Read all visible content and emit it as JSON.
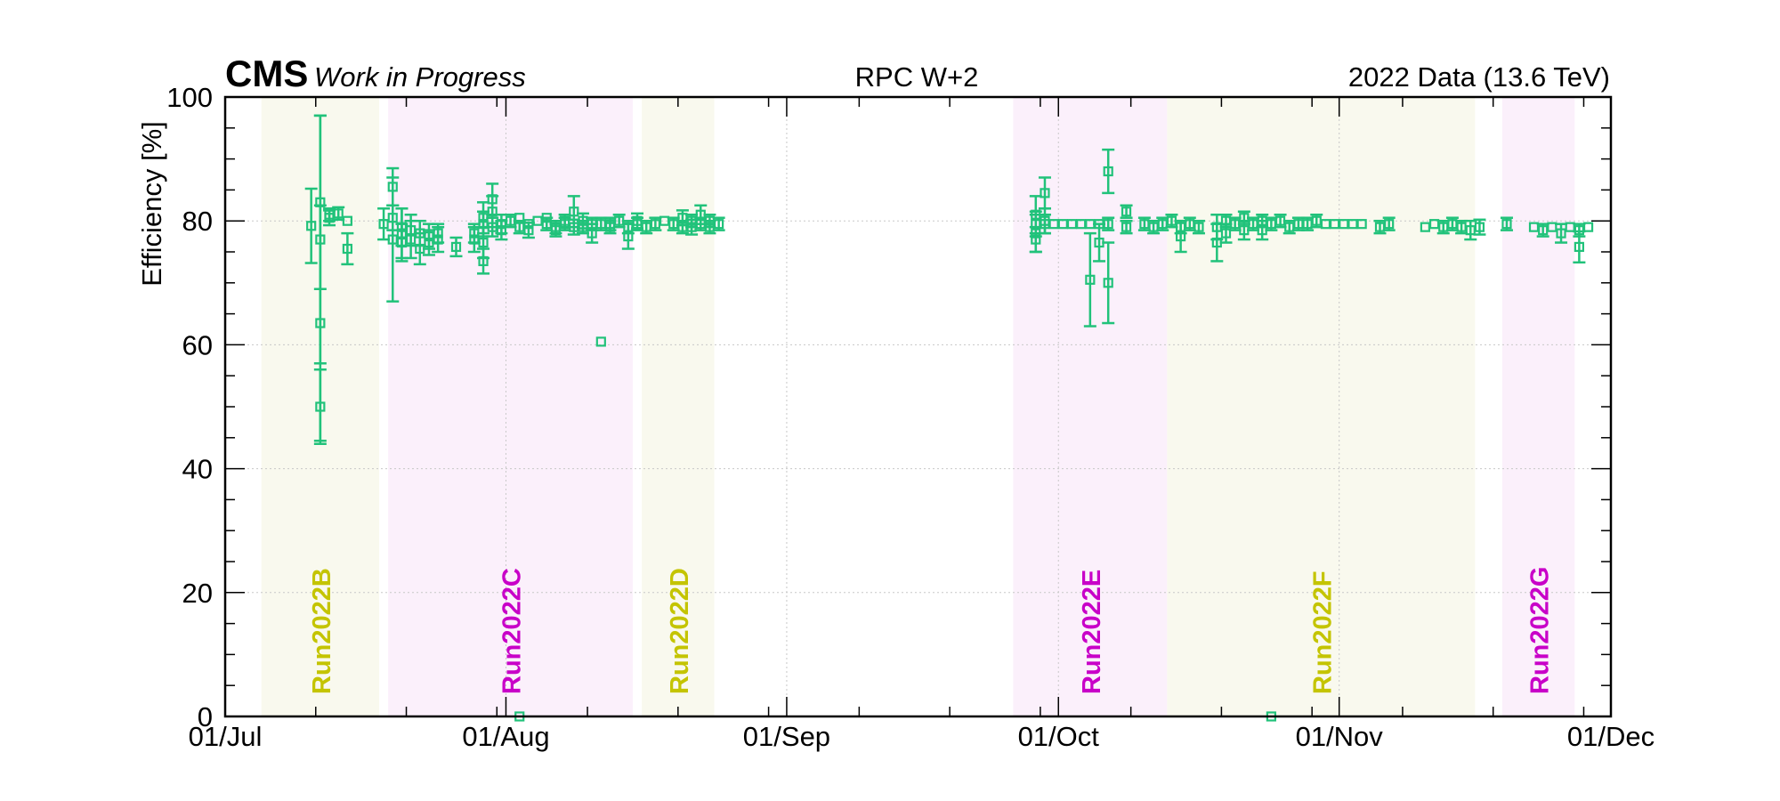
{
  "header": {
    "experiment": "CMS",
    "status": "Work in Progress",
    "plot_title": "RPC W+2",
    "dataset": "2022 Data (13.6 TeV)"
  },
  "colors": {
    "series": "#21c27a",
    "run_yellow": "#c4c400",
    "run_magenta": "#c800c8",
    "band_yellow": "#f9f9ee",
    "band_magenta": "#fbf0fb"
  },
  "chart_data": {
    "type": "scatter",
    "title": "RPC W+2",
    "xlabel": "",
    "ylabel": "Efficiency [%]",
    "x_ticks": [
      "01/Jul",
      "01/Aug",
      "01/Sep",
      "01/Oct",
      "01/Nov",
      "01/Dec"
    ],
    "x_tick_dates": [
      "2022-07-01",
      "2022-08-01",
      "2022-09-01",
      "2022-10-01",
      "2022-11-01",
      "2022-12-01"
    ],
    "xlim": [
      "2022-07-01",
      "2022-12-01"
    ],
    "y_ticks": [
      "0",
      "20",
      "40",
      "60",
      "80",
      "100"
    ],
    "ylim": [
      0,
      100
    ],
    "grid": true,
    "eras": [
      {
        "name": "Run2022B",
        "start": "2022-07-05",
        "end": "2022-07-18",
        "color": "yellow"
      },
      {
        "name": "Run2022C",
        "start": "2022-07-19",
        "end": "2022-08-15",
        "color": "magenta"
      },
      {
        "name": "Run2022D",
        "start": "2022-08-16",
        "end": "2022-08-24",
        "color": "yellow"
      },
      {
        "name": "Run2022E",
        "start": "2022-09-26",
        "end": "2022-10-13",
        "color": "magenta"
      },
      {
        "name": "Run2022F",
        "start": "2022-10-13",
        "end": "2022-11-16",
        "color": "yellow"
      },
      {
        "name": "Run2022G",
        "start": "2022-11-19",
        "end": "2022-11-27",
        "color": "magenta"
      }
    ],
    "points": [
      [
        "2022-07-10",
        79.2,
        6.0
      ],
      [
        "2022-07-11",
        63.5,
        19.0
      ],
      [
        "2022-07-11",
        50.0,
        6.0
      ],
      [
        "2022-07-11",
        77.0,
        20.0
      ],
      [
        "2022-07-11",
        83.0,
        14.0
      ],
      [
        "2022-07-12",
        80.5,
        1.2
      ],
      [
        "2022-07-12",
        81.0,
        1.0
      ],
      [
        "2022-07-13",
        81.2,
        1.0
      ],
      [
        "2022-07-14",
        80.0,
        0.8
      ],
      [
        "2022-07-14",
        75.5,
        2.5
      ],
      [
        "2022-07-18",
        79.5,
        2.5
      ],
      [
        "2022-07-19",
        80.5,
        2.0
      ],
      [
        "2022-07-19",
        85.5,
        3.0
      ],
      [
        "2022-07-19",
        77.0,
        10.0
      ],
      [
        "2022-07-20",
        78.0,
        4.0
      ],
      [
        "2022-07-20",
        79.0,
        3.0
      ],
      [
        "2022-07-20",
        76.5,
        3.0
      ],
      [
        "2022-07-21",
        78.5,
        2.5
      ],
      [
        "2022-07-21",
        77.0,
        3.0
      ],
      [
        "2022-07-22",
        75.5,
        2.5
      ],
      [
        "2022-07-22",
        78.0,
        2.0
      ],
      [
        "2022-07-23",
        77.5,
        2.0
      ],
      [
        "2022-07-23",
        76.5,
        2.0
      ],
      [
        "2022-07-24",
        77.0,
        2.0
      ],
      [
        "2022-07-24",
        78.0,
        1.5
      ],
      [
        "2022-07-26",
        75.8,
        1.5
      ],
      [
        "2022-07-28",
        77.0,
        2.0
      ],
      [
        "2022-07-28",
        78.0,
        1.5
      ],
      [
        "2022-07-29",
        73.5,
        2.0
      ],
      [
        "2022-07-29",
        76.5,
        2.5
      ],
      [
        "2022-07-29",
        79.5,
        2.0
      ],
      [
        "2022-07-29",
        80.5,
        2.5
      ],
      [
        "2022-07-30",
        81.5,
        2.5
      ],
      [
        "2022-07-30",
        83.5,
        2.5
      ],
      [
        "2022-07-30",
        79.0,
        1.5
      ],
      [
        "2022-07-31",
        78.5,
        1.5
      ],
      [
        "2022-07-31",
        79.5,
        1.5
      ],
      [
        "2022-08-01",
        80.0,
        1.0
      ],
      [
        "2022-08-02",
        80.5,
        0.8
      ],
      [
        "2022-08-02",
        0.0,
        0.3
      ],
      [
        "2022-08-02",
        79.0,
        1.0
      ],
      [
        "2022-08-03",
        78.5,
        1.2
      ],
      [
        "2022-08-03",
        79.5,
        0.8
      ],
      [
        "2022-08-04",
        80.0,
        0.8
      ],
      [
        "2022-08-05",
        80.5,
        0.8
      ],
      [
        "2022-08-05",
        79.5,
        1.0
      ],
      [
        "2022-08-06",
        79.0,
        1.0
      ],
      [
        "2022-08-06",
        78.5,
        1.0
      ],
      [
        "2022-08-07",
        79.5,
        1.0
      ],
      [
        "2022-08-07",
        80.0,
        1.0
      ],
      [
        "2022-08-08",
        79.0,
        1.2
      ],
      [
        "2022-08-08",
        81.5,
        2.5
      ],
      [
        "2022-08-09",
        80.0,
        1.2
      ],
      [
        "2022-08-09",
        79.0,
        1.0
      ],
      [
        "2022-08-10",
        78.0,
        1.5
      ],
      [
        "2022-08-10",
        79.5,
        1.0
      ],
      [
        "2022-08-11",
        60.5,
        0.5
      ],
      [
        "2022-08-11",
        79.5,
        1.0
      ],
      [
        "2022-08-12",
        79.5,
        1.0
      ],
      [
        "2022-08-12",
        79.0,
        1.0
      ],
      [
        "2022-08-13",
        80.0,
        1.0
      ],
      [
        "2022-08-14",
        77.5,
        2.0
      ],
      [
        "2022-08-14",
        79.0,
        1.0
      ],
      [
        "2022-08-15",
        79.5,
        1.0
      ],
      [
        "2022-08-15",
        80.0,
        1.2
      ],
      [
        "2022-08-16",
        79.0,
        1.0
      ],
      [
        "2022-08-17",
        79.5,
        1.0
      ],
      [
        "2022-08-18",
        80.0,
        0.8
      ],
      [
        "2022-08-19",
        79.5,
        1.0
      ],
      [
        "2022-08-20",
        79.0,
        1.0
      ],
      [
        "2022-08-20",
        80.5,
        1.2
      ],
      [
        "2022-08-21",
        79.0,
        1.2
      ],
      [
        "2022-08-21",
        80.0,
        1.0
      ],
      [
        "2022-08-22",
        79.5,
        1.0
      ],
      [
        "2022-08-22",
        81.0,
        1.5
      ],
      [
        "2022-08-23",
        79.0,
        1.0
      ],
      [
        "2022-08-23",
        80.0,
        1.0
      ],
      [
        "2022-08-24",
        79.5,
        1.0
      ],
      [
        "2022-09-28",
        79.5,
        2.0
      ],
      [
        "2022-09-28",
        78.0,
        3.0
      ],
      [
        "2022-09-28",
        81.0,
        3.0
      ],
      [
        "2022-09-28",
        77.0,
        2.0
      ],
      [
        "2022-09-29",
        84.5,
        2.5
      ],
      [
        "2022-09-29",
        80.0,
        2.0
      ],
      [
        "2022-09-29",
        79.5,
        1.5
      ],
      [
        "2022-09-30",
        79.5,
        0.8
      ],
      [
        "2022-10-01",
        79.5,
        0.8
      ],
      [
        "2022-10-02",
        79.5,
        0.8
      ],
      [
        "2022-10-03",
        79.5,
        0.8
      ],
      [
        "2022-10-04",
        79.5,
        0.8
      ],
      [
        "2022-10-04",
        70.5,
        7.5
      ],
      [
        "2022-10-05",
        79.5,
        0.8
      ],
      [
        "2022-10-05",
        76.5,
        3.0
      ],
      [
        "2022-10-06",
        70.0,
        6.5
      ],
      [
        "2022-10-06",
        79.5,
        1.0
      ],
      [
        "2022-10-06",
        88.0,
        3.5
      ],
      [
        "2022-10-08",
        79.0,
        1.0
      ],
      [
        "2022-10-08",
        81.5,
        1.0
      ],
      [
        "2022-10-10",
        79.5,
        1.0
      ],
      [
        "2022-10-11",
        79.0,
        1.0
      ],
      [
        "2022-10-12",
        79.5,
        1.0
      ],
      [
        "2022-10-13",
        80.0,
        1.0
      ],
      [
        "2022-10-14",
        79.0,
        1.0
      ],
      [
        "2022-10-14",
        77.5,
        2.5
      ],
      [
        "2022-10-15",
        79.5,
        1.0
      ],
      [
        "2022-10-16",
        79.0,
        1.0
      ],
      [
        "2022-10-18",
        76.5,
        3.0
      ],
      [
        "2022-10-18",
        79.0,
        2.0
      ],
      [
        "2022-10-19",
        78.0,
        1.5
      ],
      [
        "2022-10-19",
        80.0,
        1.0
      ],
      [
        "2022-10-20",
        79.5,
        1.0
      ],
      [
        "2022-10-21",
        78.5,
        1.5
      ],
      [
        "2022-10-21",
        80.5,
        1.0
      ],
      [
        "2022-10-22",
        79.5,
        1.0
      ],
      [
        "2022-10-23",
        78.5,
        1.5
      ],
      [
        "2022-10-23",
        80.0,
        1.0
      ],
      [
        "2022-10-24",
        0.0,
        0.3
      ],
      [
        "2022-10-24",
        79.5,
        1.0
      ],
      [
        "2022-10-25",
        80.0,
        1.0
      ],
      [
        "2022-10-26",
        79.0,
        1.0
      ],
      [
        "2022-10-27",
        79.5,
        1.0
      ],
      [
        "2022-10-28",
        79.5,
        1.0
      ],
      [
        "2022-10-29",
        80.0,
        1.0
      ],
      [
        "2022-10-30",
        79.5,
        0.8
      ],
      [
        "2022-10-31",
        79.5,
        0.8
      ],
      [
        "2022-11-01",
        79.5,
        0.8
      ],
      [
        "2022-11-02",
        79.5,
        0.8
      ],
      [
        "2022-11-03",
        79.5,
        0.8
      ],
      [
        "2022-11-05",
        79.0,
        1.0
      ],
      [
        "2022-11-06",
        79.5,
        1.0
      ],
      [
        "2022-11-10",
        79.0,
        0.8
      ],
      [
        "2022-11-11",
        79.5,
        0.8
      ],
      [
        "2022-11-12",
        79.0,
        1.0
      ],
      [
        "2022-11-13",
        79.5,
        1.0
      ],
      [
        "2022-11-14",
        79.0,
        1.0
      ],
      [
        "2022-11-15",
        78.5,
        1.5
      ],
      [
        "2022-11-16",
        79.0,
        1.2
      ],
      [
        "2022-11-19",
        79.5,
        1.0
      ],
      [
        "2022-11-22",
        79.0,
        0.8
      ],
      [
        "2022-11-23",
        78.5,
        1.0
      ],
      [
        "2022-11-24",
        79.0,
        0.8
      ],
      [
        "2022-11-25",
        78.0,
        1.5
      ],
      [
        "2022-11-26",
        79.0,
        0.8
      ],
      [
        "2022-11-27",
        75.8,
        2.5
      ],
      [
        "2022-11-27",
        78.5,
        1.0
      ],
      [
        "2022-11-28",
        79.0,
        0.8
      ]
    ]
  }
}
